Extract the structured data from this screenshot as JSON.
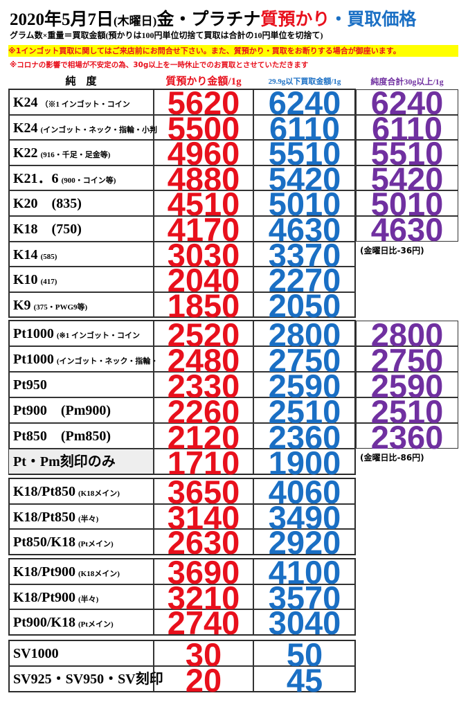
{
  "header": {
    "title": [
      "2020年5月7日",
      "(木曜日)",
      "金・プラチナ",
      "質預かり",
      "・",
      "買取価格"
    ],
    "subtitle": "グラム数×重量＝買取金額(預かりは100円単位切捨て買取は合計の10円単位を切捨て)",
    "notices": [
      "※1インゴット買取に関してはご来店前にお問合せ下さい。また、質預かり・買取をお断りする場合が御座います。",
      "※コロナの影響で相場が不安定の為、30g以上を一時休止でのお買取とさせていただきます"
    ]
  },
  "table": {
    "columns": [
      "純　度",
      "質預かり金額/1g",
      "29.9g以下買取金額/1g",
      "純度合計30g以上/1g"
    ],
    "sections": [
      {
        "rows": [
          {
            "name": "K24",
            "sub": "（※1 インゴット・コイン",
            "values": [
              5620,
              6240,
              6240
            ]
          },
          {
            "name": "K24",
            "sub": "(インゴット・ネック・指輪・小判",
            "values": [
              5500,
              6110,
              6110
            ]
          },
          {
            "name": "K22",
            "sub": "(916・千足・足金等)",
            "values": [
              4960,
              5510,
              5510
            ]
          },
          {
            "name": "K21．6",
            "sub": "(900・コイン等)",
            "values": [
              4880,
              5420,
              5420
            ]
          },
          {
            "name": "K20　(835)",
            "values": [
              4510,
              5010,
              5010
            ]
          },
          {
            "name": "K18　(750)",
            "values": [
              4170,
              4630,
              4630
            ]
          },
          {
            "name": "K14",
            "sub": "(585)",
            "values": [
              3030,
              3370
            ],
            "remark": "(金曜日比-36円)"
          },
          {
            "name": "K10",
            "sub": "(417)",
            "values": [
              2040,
              2270
            ]
          },
          {
            "name": "K9",
            "sub": "(375・PWG9等)",
            "values": [
              1850,
              2050
            ]
          }
        ]
      },
      {
        "rows": [
          {
            "name": "Pt1000",
            "sub": "(※1 インゴット・コイン",
            "values": [
              2520,
              2800,
              2800
            ]
          },
          {
            "name": "Pt1000",
            "sub": "(インゴット・ネック・指輪・",
            "values": [
              2480,
              2750,
              2750
            ]
          },
          {
            "name": "Pt950",
            "values": [
              2330,
              2590,
              2590
            ]
          },
          {
            "name": "Pt900　(Pm900)",
            "values": [
              2260,
              2510,
              2510
            ]
          },
          {
            "name": "Pt850　(Pm850)",
            "values": [
              2120,
              2360,
              2360
            ]
          },
          {
            "name": "Pt・Pm刻印のみ",
            "values": [
              1710,
              1900
            ],
            "remark": "(金曜日比-86円)"
          }
        ]
      },
      {
        "rows": [
          {
            "name": "K18/Pt850",
            "sub": "(K18メイン)",
            "values": [
              3650,
              4060
            ]
          },
          {
            "name": "K18/Pt850",
            "sub": "(半々)",
            "values": [
              3140,
              3490
            ]
          },
          {
            "name": "Pt850/K18",
            "sub": "(Ptメイン)",
            "values": [
              2630,
              2920
            ]
          }
        ]
      },
      {
        "rows": [
          {
            "name": "K18/Pt900",
            "sub": "(K18メイン)",
            "values": [
              3690,
              4100
            ]
          },
          {
            "name": "K18/Pt900",
            "sub": "(半々)",
            "values": [
              3210,
              3570
            ]
          },
          {
            "name": "Pt900/K18",
            "sub": "(Ptメイン)",
            "values": [
              2740,
              3040
            ]
          }
        ]
      },
      {
        "rows": [
          {
            "name": "SV1000",
            "values": [
              30,
              50
            ]
          },
          {
            "name": "SV925・SV950・SV刻印",
            "values": [
              20,
              45
            ]
          }
        ]
      }
    ]
  }
}
